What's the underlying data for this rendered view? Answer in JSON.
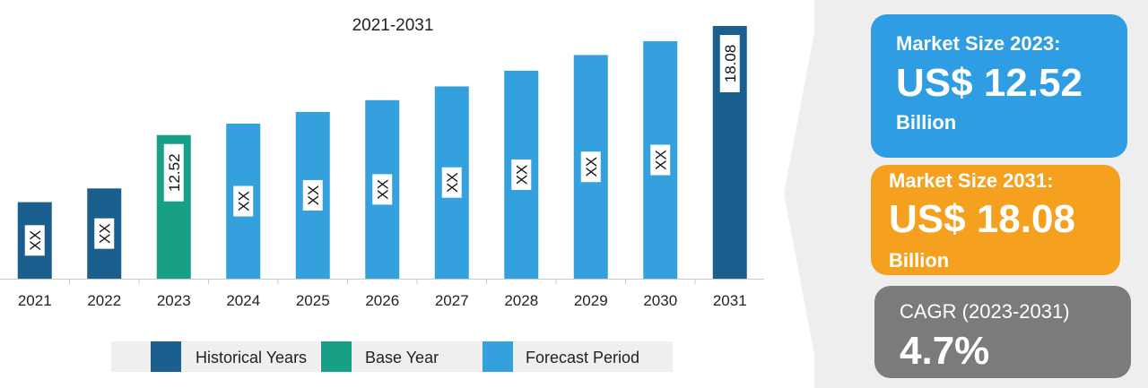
{
  "chart_data": {
    "type": "bar",
    "title": "2021-2031",
    "categories": [
      "2021",
      "2022",
      "2023",
      "2024",
      "2025",
      "2026",
      "2027",
      "2028",
      "2029",
      "2030",
      "2031"
    ],
    "values": [
      9.1,
      9.8,
      12.52,
      13.1,
      13.7,
      14.3,
      15.0,
      15.8,
      16.6,
      17.3,
      18.08
    ],
    "data_labels": [
      "XX",
      "XX",
      "XX",
      "XX",
      "XX",
      "XX",
      "XX",
      "XX",
      "XX",
      "XX",
      "18.08"
    ],
    "base_label": "12.52",
    "periods": [
      "historical",
      "historical",
      "base",
      "forecast",
      "forecast",
      "forecast",
      "forecast",
      "forecast",
      "forecast",
      "forecast",
      "historical"
    ],
    "ylim": [
      5.2,
      18.08
    ],
    "colors": {
      "historical": "#1b5f8f",
      "base": "#17a085",
      "forecast": "#34a0de"
    },
    "legend": [
      {
        "key": "historical",
        "label": "Historical Years"
      },
      {
        "key": "base",
        "label": "Base Year"
      },
      {
        "key": "forecast",
        "label": "Forecast Period"
      }
    ]
  },
  "cards": {
    "size_2023": {
      "label": "Market Size 2023:",
      "value": "US$ 12.52",
      "unit": "Billion"
    },
    "size_2031": {
      "label": "Market Size 2031:",
      "value": "US$ 18.08",
      "unit": "Billion"
    },
    "cagr": {
      "label": "CAGR (2023-2031)",
      "value": "4.7%"
    }
  }
}
